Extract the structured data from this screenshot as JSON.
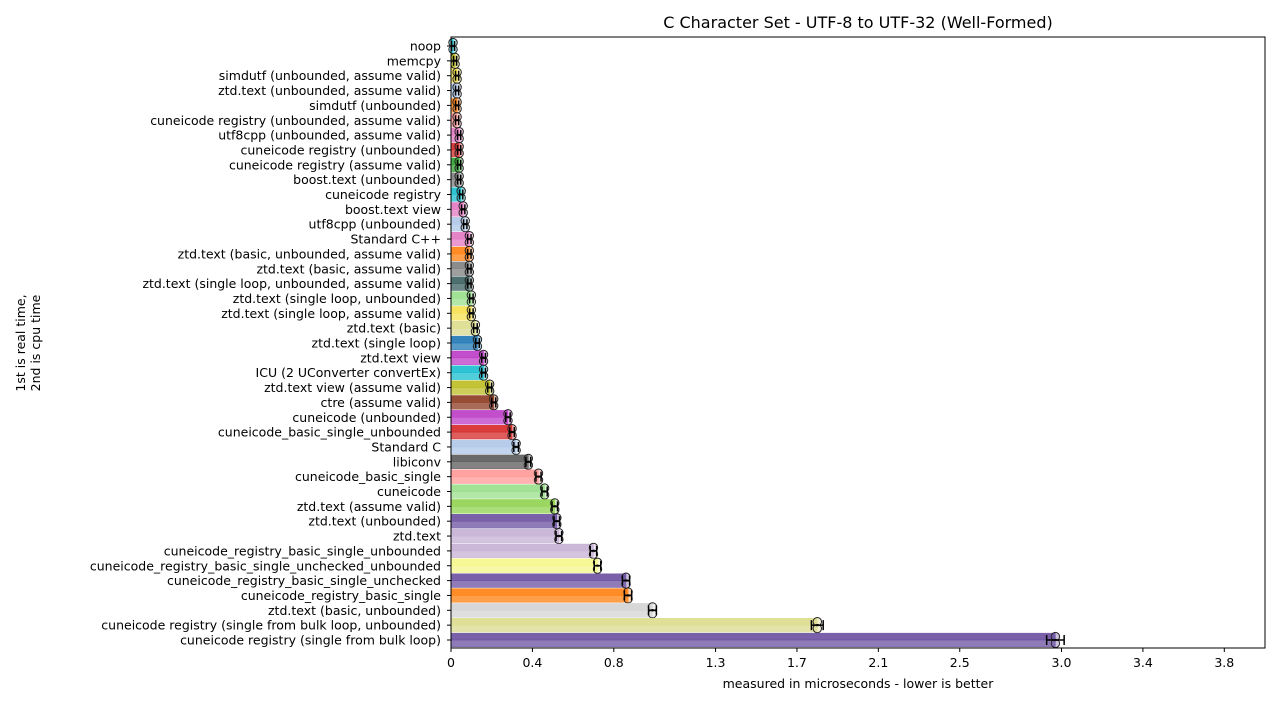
{
  "chart_data": {
    "type": "bar",
    "orientation": "horizontal",
    "title": "C Character Set - UTF-8 to UTF-32 (Well-Formed)",
    "xlabel": "measured in microseconds - lower is better",
    "ylabel_line1": "1st is real time,",
    "ylabel_line2": "2nd is cpu time",
    "xlim": [
      0,
      4.0
    ],
    "xticks": [
      0,
      0.4,
      0.8,
      1.3,
      1.7,
      2.1,
      2.5,
      3.0,
      3.4,
      3.8
    ],
    "xtick_labels": [
      "0",
      "0.4",
      "0.8",
      "1.3",
      "1.7",
      "2.1",
      "2.5",
      "3.0",
      "3.4",
      "3.8"
    ],
    "grid": false,
    "legend": "none",
    "categories": [
      "noop",
      "memcpy",
      "simdutf (unbounded, assume valid)",
      "ztd.text (unbounded, assume valid)",
      "simdutf (unbounded)",
      "cuneicode registry (unbounded, assume valid)",
      "utf8cpp (unbounded, assume valid)",
      "cuneicode registry (unbounded)",
      "cuneicode registry (assume valid)",
      "boost.text (unbounded)",
      "cuneicode registry",
      "boost.text view",
      "utf8cpp (unbounded)",
      "Standard C++",
      "ztd.text (basic, unbounded, assume valid)",
      "ztd.text (basic, assume valid)",
      "ztd.text (single loop, unbounded, assume valid)",
      "ztd.text (single loop, unbounded)",
      "ztd.text (single loop, assume valid)",
      "ztd.text (basic)",
      "ztd.text (single loop)",
      "ztd.text view",
      "ICU (2 UConverter convertEx)",
      "ztd.text view (assume valid)",
      "ctre (assume valid)",
      "cuneicode (unbounded)",
      "cuneicode_basic_single_unbounded",
      "Standard C",
      "libiconv",
      "cuneicode_basic_single",
      "cuneicode",
      "ztd.text (assume valid)",
      "ztd.text (unbounded)",
      "ztd.text",
      "cuneicode_registry_basic_single_unbounded",
      "cuneicode_registry_basic_single_unchecked_unbounded",
      "cuneicode_registry_basic_single_unchecked",
      "cuneicode_registry_basic_single",
      "ztd.text (basic, unbounded)",
      "cuneicode registry (single from bulk loop, unbounded)",
      "cuneicode registry (single from bulk loop)"
    ],
    "series": [
      {
        "values": [
          0.01,
          0.02,
          0.03,
          0.03,
          0.03,
          0.03,
          0.04,
          0.04,
          0.04,
          0.04,
          0.05,
          0.06,
          0.07,
          0.09,
          0.09,
          0.09,
          0.09,
          0.1,
          0.1,
          0.12,
          0.13,
          0.16,
          0.16,
          0.19,
          0.21,
          0.28,
          0.3,
          0.32,
          0.38,
          0.43,
          0.46,
          0.51,
          0.52,
          0.53,
          0.7,
          0.72,
          0.86,
          0.87,
          0.99,
          1.8,
          2.97
        ]
      },
      {
        "values": [
          0.01,
          0.02,
          0.03,
          0.03,
          0.03,
          0.03,
          0.04,
          0.04,
          0.04,
          0.04,
          0.05,
          0.06,
          0.07,
          0.09,
          0.09,
          0.09,
          0.09,
          0.1,
          0.1,
          0.12,
          0.13,
          0.16,
          0.16,
          0.19,
          0.21,
          0.28,
          0.3,
          0.32,
          0.38,
          0.43,
          0.46,
          0.51,
          0.52,
          0.53,
          0.7,
          0.72,
          0.86,
          0.87,
          0.99,
          1.8,
          2.97
        ]
      }
    ],
    "colors": [
      "#17becf",
      "#bcbd22",
      "#f4e04d",
      "#aec7e8",
      "#ff7f0e",
      "#ff9896",
      "#e377c2",
      "#d62728",
      "#2ca02c",
      "#7f7f7f",
      "#17becf",
      "#e377c2",
      "#aec7e8",
      "#e377c2",
      "#ff7f0e",
      "#7f7f7f",
      "#3a5f5f",
      "#98df8a",
      "#f7e04d",
      "#dbdb8d",
      "#1f77b4",
      "#bc3bc6",
      "#17becf",
      "#bcbd22",
      "#8c3a1f",
      "#bc3bc6",
      "#d62728",
      "#aec7e8",
      "#5a5a5a",
      "#ff9896",
      "#98df8a",
      "#8fd14f",
      "#6a4fa0",
      "#c5b0d5",
      "#c5b0d5",
      "#f4f78a",
      "#6a4fa0",
      "#ff7f0e",
      "#d3d3d3",
      "#dbdb8d",
      "#6a4fa0"
    ]
  }
}
